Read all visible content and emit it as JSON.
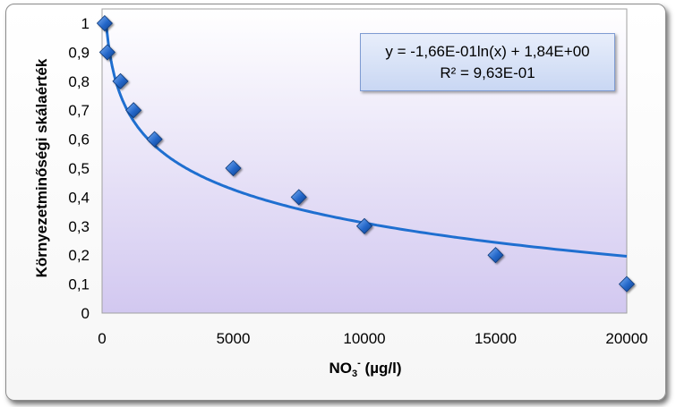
{
  "chart_data": {
    "type": "scatter",
    "title": "",
    "xlabel_main": "NO",
    "xlabel_sub": "3",
    "xlabel_sup": "-",
    "xlabel_unit": " (µg/l)",
    "ylabel": "Környezetminőségi skálaérték",
    "xlim": [
      0,
      20000
    ],
    "ylim": [
      0,
      1
    ],
    "x_ticks": [
      "0",
      "5000",
      "10000",
      "15000",
      "20000"
    ],
    "y_ticks": [
      "0",
      "0,1",
      "0,2",
      "0,3",
      "0,4",
      "0,5",
      "0,6",
      "0,7",
      "0,8",
      "0,9",
      "1"
    ],
    "points": [
      {
        "x": 100,
        "y": 1.0
      },
      {
        "x": 200,
        "y": 0.9
      },
      {
        "x": 700,
        "y": 0.8
      },
      {
        "x": 1200,
        "y": 0.7
      },
      {
        "x": 2000,
        "y": 0.6
      },
      {
        "x": 5000,
        "y": 0.5
      },
      {
        "x": 7500,
        "y": 0.4
      },
      {
        "x": 10000,
        "y": 0.3
      },
      {
        "x": 15000,
        "y": 0.2
      },
      {
        "x": 20000,
        "y": 0.1
      }
    ],
    "trendline": {
      "type": "log",
      "a": -0.166,
      "b": 1.84,
      "x_end": 20000
    },
    "equation": "y = -1,66E-01ln(x) + 1,84E+00",
    "r_squared": "R² = 9,63E-01",
    "grid": false,
    "colors": {
      "marker": "#1f5fbf",
      "trendline": "#1f6fd0",
      "plot_top": "#ffffff",
      "plot_bottom": "#d2c8f0"
    }
  }
}
